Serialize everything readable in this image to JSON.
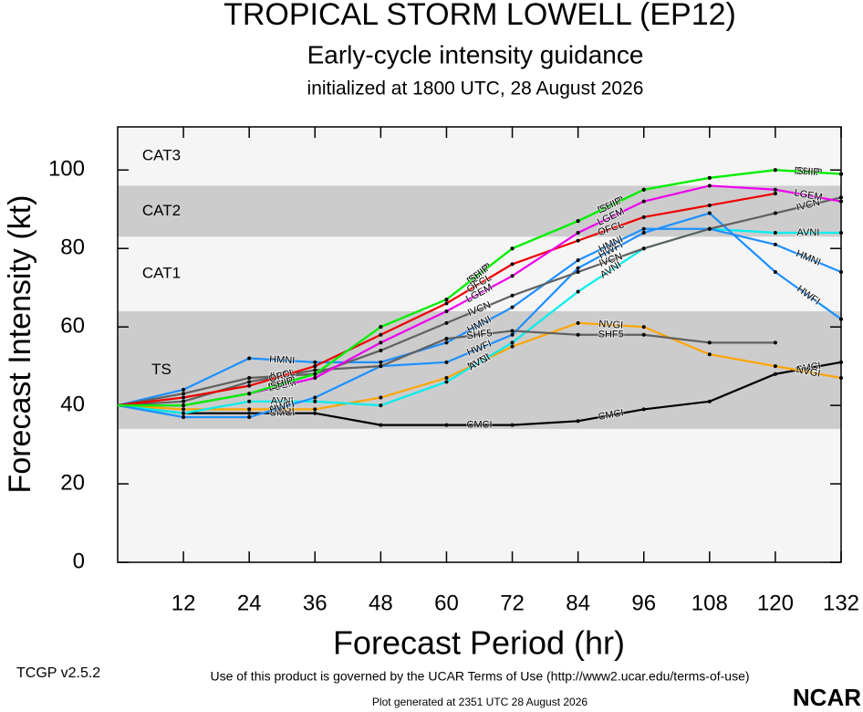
{
  "chart_data": {
    "type": "line",
    "title": "TROPICAL STORM LOWELL (EP12)",
    "subtitle": "Early-cycle intensity guidance",
    "initialized": "initialized at 1800 UTC, 28 August 2026",
    "x_label": "Forecast Period (hr)",
    "y_label": "Forecast Intensity (kt)",
    "footer_version": "TCGP v2.5.2",
    "footer_terms": "Use of this product is governed by the UCAR Terms of Use (http://www2.ucar.edu/terms-of-use)",
    "footer_generated": "Plot generated at 2351 UTC   28 August 2026",
    "logo": "NCAR",
    "xlim": [
      0,
      132
    ],
    "ylim": [
      0,
      111
    ],
    "xticks": [
      12,
      24,
      36,
      48,
      60,
      72,
      84,
      96,
      108,
      120,
      132
    ],
    "yticks": [
      0,
      20,
      40,
      60,
      80,
      100
    ],
    "bands": [
      {
        "label": "TS",
        "from": 34,
        "to": 64,
        "shaded": true
      },
      {
        "label": "CAT1",
        "from": 64,
        "to": 83,
        "shaded": false
      },
      {
        "label": "CAT2",
        "from": 83,
        "to": 96,
        "shaded": true
      },
      {
        "label": "CAT3",
        "from": 96,
        "to": 111,
        "shaded": false
      }
    ],
    "x": [
      0,
      12,
      24,
      36,
      48,
      60,
      72,
      84,
      96,
      108,
      120,
      132
    ],
    "series": [
      {
        "name": "CMCI",
        "color": "#000000",
        "values": [
          40,
          38,
          38,
          38,
          35,
          35,
          35,
          36,
          39,
          41,
          48,
          51
        ]
      },
      {
        "name": "NVGI",
        "color": "#ffa500",
        "values": [
          40,
          39,
          39,
          39,
          42,
          47,
          55,
          61,
          60,
          53,
          50,
          47
        ]
      },
      {
        "name": "AVNI",
        "color": "#00eeee",
        "values": [
          40,
          38,
          41,
          41,
          40,
          46,
          56,
          69,
          80,
          85,
          84,
          84
        ]
      },
      {
        "name": "HWFI",
        "color": "#1e90ff",
        "values": [
          40,
          37,
          37,
          42,
          50,
          51,
          58,
          75,
          84,
          89,
          74,
          62
        ]
      },
      {
        "name": "HMNI",
        "color": "#1e90ff",
        "values": [
          40,
          44,
          52,
          51,
          51,
          56,
          65,
          77,
          85,
          85,
          81,
          74
        ]
      },
      {
        "name": "SHF5",
        "color": "#606060",
        "values": [
          40,
          41,
          46,
          49,
          50,
          57,
          59,
          58,
          58,
          56,
          56,
          null
        ]
      },
      {
        "name": "IVCN",
        "color": "#606060",
        "values": [
          40,
          43,
          47,
          48,
          54,
          61,
          68,
          74,
          80,
          85,
          89,
          93
        ]
      },
      {
        "name": "OFCL",
        "color": "#ee0000",
        "values": [
          40,
          42,
          45,
          50,
          58,
          66,
          76,
          82,
          88,
          91,
          94,
          null
        ]
      },
      {
        "name": "LGEM",
        "color": "#ee00ee",
        "values": [
          40,
          40,
          43,
          47,
          56,
          64,
          73,
          84,
          92,
          96,
          95,
          92
        ]
      },
      {
        "name": "DSHP",
        "color": "#00ee00",
        "values": [
          40,
          40,
          43,
          48,
          60,
          67,
          80,
          87,
          95,
          98,
          100,
          99
        ]
      },
      {
        "name": "SHIP",
        "color": "#00ee00",
        "values": [
          40,
          40,
          43,
          48,
          60,
          67,
          80,
          87,
          95,
          98,
          100,
          99
        ]
      }
    ]
  }
}
